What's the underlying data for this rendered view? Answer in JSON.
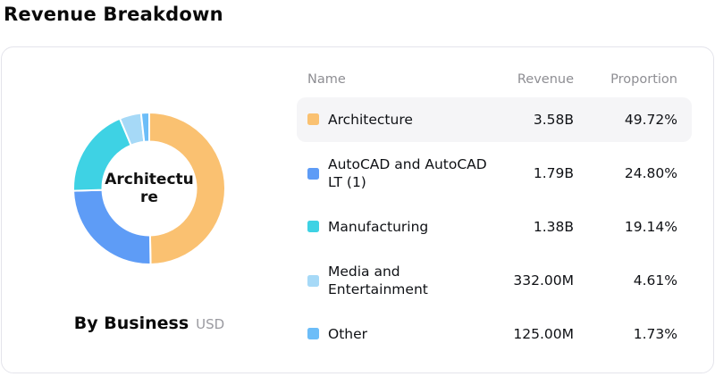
{
  "page_title": "Revenue Breakdown",
  "chart_data": {
    "type": "pie",
    "donut": true,
    "title": "By Business",
    "unit": "USD",
    "center_label": "Architecture",
    "start_angle_deg": 0,
    "direction": "clockwise",
    "categories": [
      "Architecture",
      "AutoCAD and AutoCAD LT (1)",
      "Manufacturing",
      "Media and Entertainment",
      "Other"
    ],
    "values": [
      49.72,
      24.8,
      19.14,
      4.61,
      1.73
    ],
    "revenues": [
      "3.58B",
      "1.79B",
      "1.38B",
      "332.00M",
      "125.00M"
    ],
    "colors": [
      "#FAC171",
      "#5E9CF6",
      "#3ED2E4",
      "#A6D9F7",
      "#6CBDF8"
    ],
    "legend_position": "right-table"
  },
  "table": {
    "columns": [
      "Name",
      "Revenue",
      "Proportion"
    ],
    "rows": [
      {
        "name": "Architecture",
        "revenue": "3.58B",
        "proportion": "49.72%",
        "color": "#FAC171",
        "highlighted": true
      },
      {
        "name": "AutoCAD and AutoCAD LT (1)",
        "revenue": "1.79B",
        "proportion": "24.80%",
        "color": "#5E9CF6",
        "highlighted": false
      },
      {
        "name": "Manufacturing",
        "revenue": "1.38B",
        "proportion": "19.14%",
        "color": "#3ED2E4",
        "highlighted": false
      },
      {
        "name": "Media and Entertainment",
        "revenue": "332.00M",
        "proportion": "4.61%",
        "color": "#A6D9F7",
        "highlighted": false
      },
      {
        "name": "Other",
        "revenue": "125.00M",
        "proportion": "1.73%",
        "color": "#6CBDF8",
        "highlighted": false
      }
    ]
  },
  "footer": {
    "label": "By Business",
    "unit": "USD"
  }
}
